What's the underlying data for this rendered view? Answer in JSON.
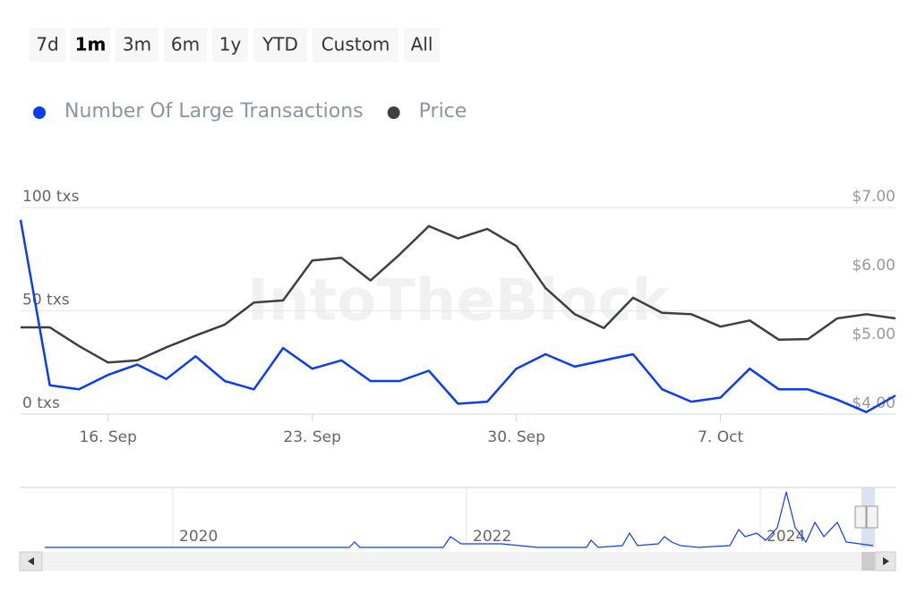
{
  "range_buttons": [
    "7d",
    "1m",
    "3m",
    "6m",
    "1y",
    "YTD",
    "Custom",
    "All"
  ],
  "selected_button": "1m",
  "watermark": "IntoTheBlock",
  "navigator_labels": [
    "2020",
    "2022",
    "2024"
  ],
  "chart_data": {
    "type": "line",
    "categories": [
      null,
      null,
      null,
      "16. Sep",
      null,
      null,
      null,
      null,
      null,
      null,
      "23. Sep",
      null,
      null,
      null,
      null,
      null,
      null,
      "30. Sep",
      null,
      null,
      null,
      null,
      null,
      null,
      "7. Oct",
      null,
      null,
      null,
      null,
      null,
      null
    ],
    "series": [
      {
        "name": "Number Of Large Transactions",
        "color": "#0b3cf5",
        "axis": "y",
        "values": [
          94,
          14,
          12,
          19,
          24,
          17,
          28,
          16,
          12,
          32,
          22,
          26,
          16,
          16,
          21,
          5,
          6,
          22,
          29,
          23,
          26,
          29,
          12,
          6,
          8,
          22,
          12,
          12,
          7,
          1,
          9
        ]
      },
      {
        "name": "Price",
        "color": "#3c3f44",
        "axis": "y2",
        "values": [
          5.26,
          5.26,
          4.99,
          4.75,
          4.78,
          4.97,
          5.14,
          5.3,
          5.62,
          5.65,
          6.23,
          6.27,
          5.94,
          6.32,
          6.73,
          6.55,
          6.69,
          6.44,
          5.83,
          5.45,
          5.25,
          5.69,
          5.47,
          5.45,
          5.27,
          5.36,
          5.08,
          5.09,
          5.39,
          5.45,
          5.39
        ]
      }
    ],
    "ylim": [
      0,
      100
    ],
    "yticks": [
      {
        "value": 0,
        "label": "0 txs"
      },
      {
        "value": 50,
        "label": "50 txs"
      },
      {
        "value": 100,
        "label": "100 txs"
      }
    ],
    "y2lim": [
      4,
      7
    ],
    "y2ticks": [
      {
        "value": 4,
        "label": "$4.00"
      },
      {
        "value": 5,
        "label": "$5.00"
      },
      {
        "value": 6,
        "label": "$6.00"
      },
      {
        "value": 7,
        "label": "$7.00"
      }
    ],
    "grid": true,
    "legend": "top-left"
  }
}
